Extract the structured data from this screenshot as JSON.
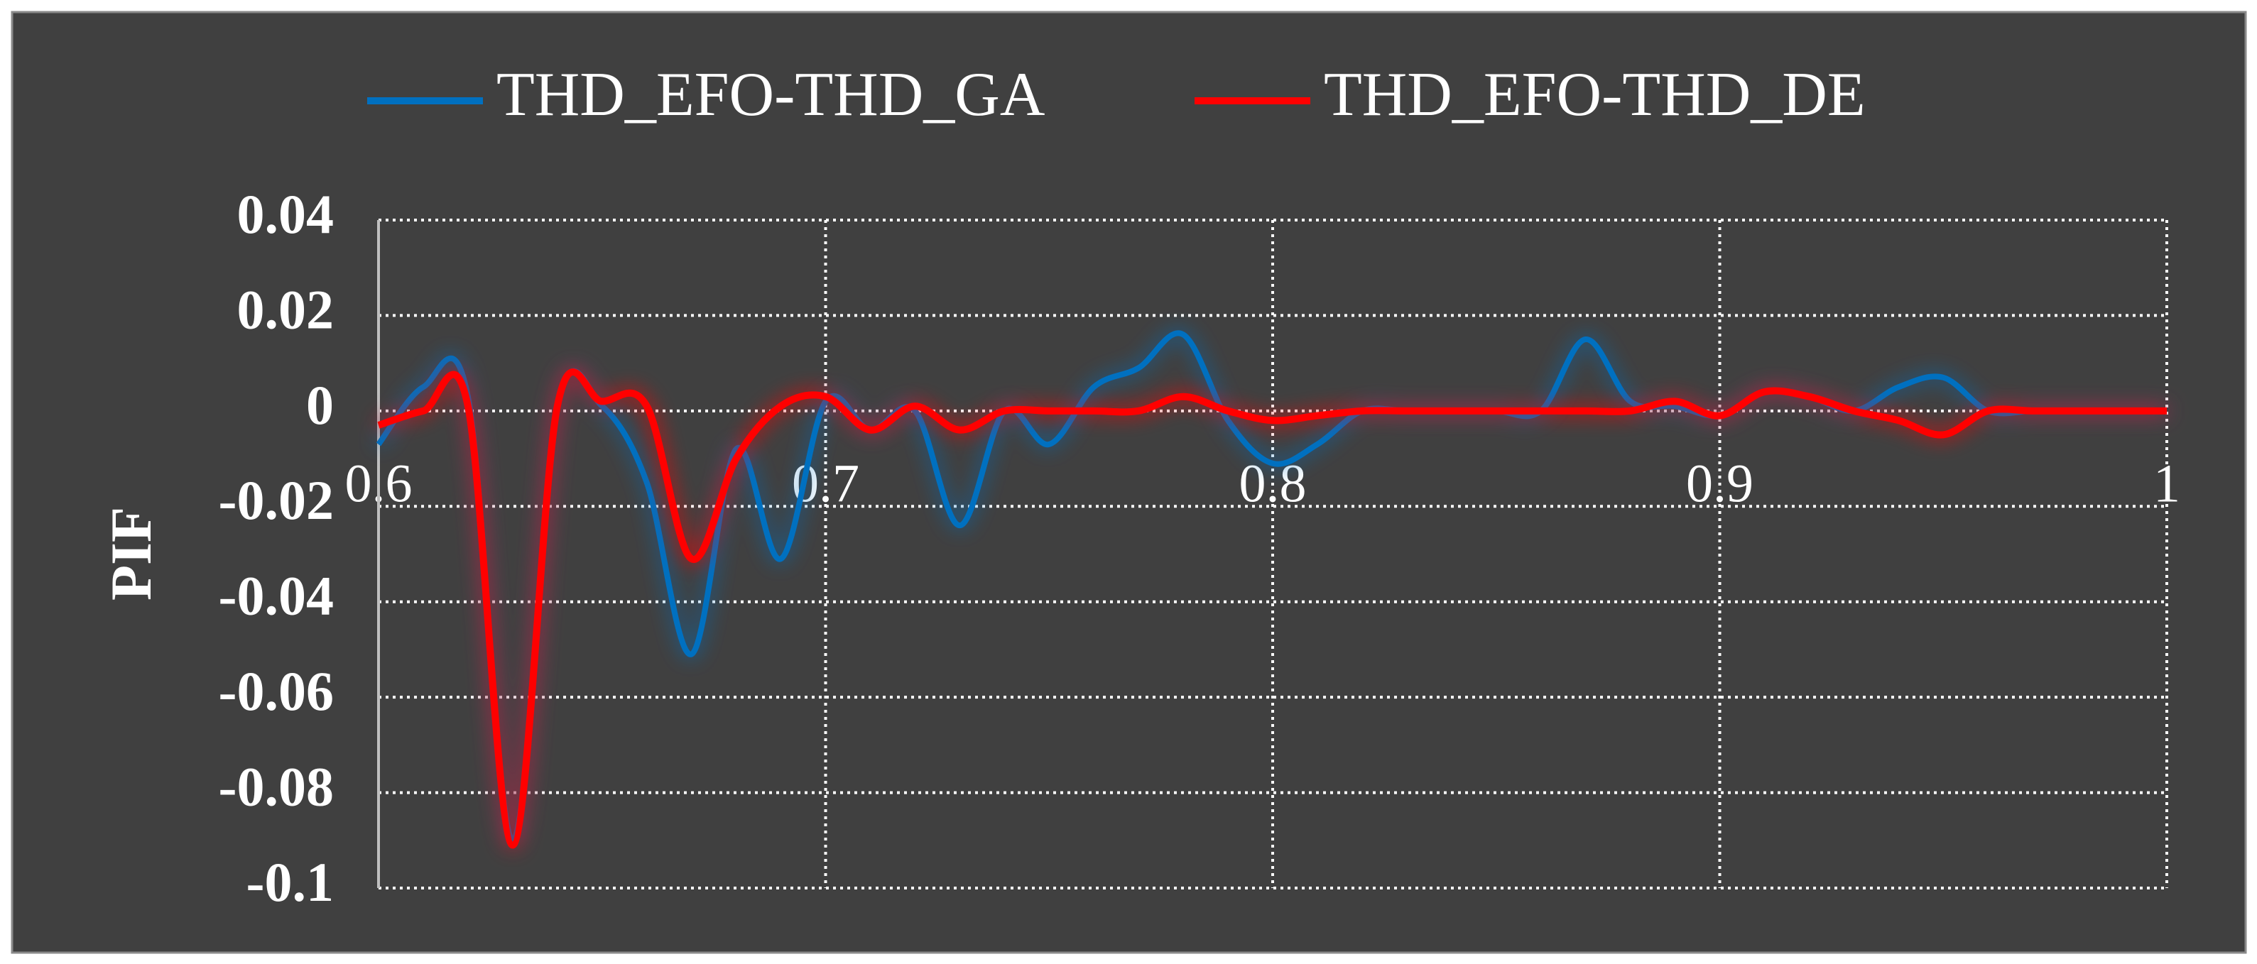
{
  "chart_data": {
    "type": "line",
    "y_label": "PIF",
    "x": [
      0.6,
      0.61,
      0.62,
      0.63,
      0.64,
      0.65,
      0.66,
      0.67,
      0.68,
      0.69,
      0.7,
      0.71,
      0.72,
      0.73,
      0.74,
      0.75,
      0.76,
      0.77,
      0.78,
      0.79,
      0.8,
      0.81,
      0.82,
      0.83,
      0.84,
      0.85,
      0.86,
      0.87,
      0.88,
      0.89,
      0.9,
      0.91,
      0.92,
      0.93,
      0.94,
      0.95,
      0.96,
      0.97,
      0.98,
      0.99,
      1
    ],
    "series": [
      {
        "name": "THD_EFO-THD_GA",
        "color": "#0070c0",
        "values": [
          -0.007,
          0.005,
          0.003,
          -0.09,
          0.001,
          0.001,
          -0.015,
          -0.051,
          -0.008,
          -0.031,
          0.002,
          -0.004,
          0.0,
          -0.024,
          0.0,
          -0.007,
          0.005,
          0.009,
          0.016,
          -0.002,
          -0.011,
          -0.007,
          0.0,
          0.0,
          0.0,
          0.0,
          0.0,
          0.015,
          0.002,
          0.001,
          -0.001,
          0.004,
          0.003,
          0.0,
          0.005,
          0.007,
          0.0,
          0.0,
          0.0,
          0.0,
          0.0
        ]
      },
      {
        "name": "THD_EFO-THD_DE",
        "color": "#ff0000",
        "values": [
          -0.003,
          0.0,
          0.001,
          -0.091,
          0.001,
          0.002,
          0.001,
          -0.031,
          -0.01,
          0.001,
          0.003,
          -0.004,
          0.001,
          -0.004,
          0.0,
          0.0,
          0.0,
          0.0,
          0.003,
          0.0,
          -0.002,
          -0.001,
          0.0,
          0.0,
          0.0,
          0.0,
          0.0,
          0.0,
          0.0,
          0.002,
          -0.001,
          0.004,
          0.003,
          0.0,
          -0.002,
          -0.005,
          0.0,
          0.0,
          0.0,
          0.0,
          0.0
        ]
      }
    ],
    "xlim": [
      0.6,
      1
    ],
    "xticks": [
      0.6,
      0.7,
      0.8,
      0.9,
      1
    ],
    "ylim": [
      -0.1,
      0.04
    ],
    "yticks": [
      0.04,
      0.02,
      0,
      -0.02,
      -0.04,
      -0.06,
      -0.08,
      -0.1
    ],
    "grid": true,
    "legend": "top"
  }
}
